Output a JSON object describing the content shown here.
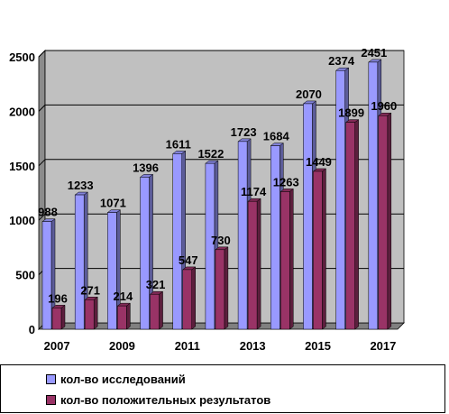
{
  "chart_data": {
    "type": "bar",
    "categories": [
      "2007",
      "2008",
      "2009",
      "2010",
      "2011",
      "2012",
      "2013",
      "2014",
      "2015",
      "2016",
      "2017"
    ],
    "x_tick_labels": [
      "2007",
      "2009",
      "2011",
      "2013",
      "2015",
      "2017"
    ],
    "y_ticks": [
      0,
      500,
      1000,
      1500,
      2000,
      2500
    ],
    "ylim": [
      0,
      2500
    ],
    "grid": true,
    "legend_position": "bottom",
    "series": [
      {
        "name": "кол-во исследований",
        "color": "#9999ff",
        "values": [
          988,
          1233,
          1071,
          1396,
          1611,
          1522,
          1723,
          1684,
          2070,
          2374,
          2451
        ]
      },
      {
        "name": "кол-во положительных  результатов",
        "color": "#993366",
        "values": [
          196,
          271,
          214,
          321,
          547,
          730,
          1174,
          1263,
          1449,
          1899,
          1960
        ]
      }
    ],
    "plot_background": "#c0c0c0"
  }
}
